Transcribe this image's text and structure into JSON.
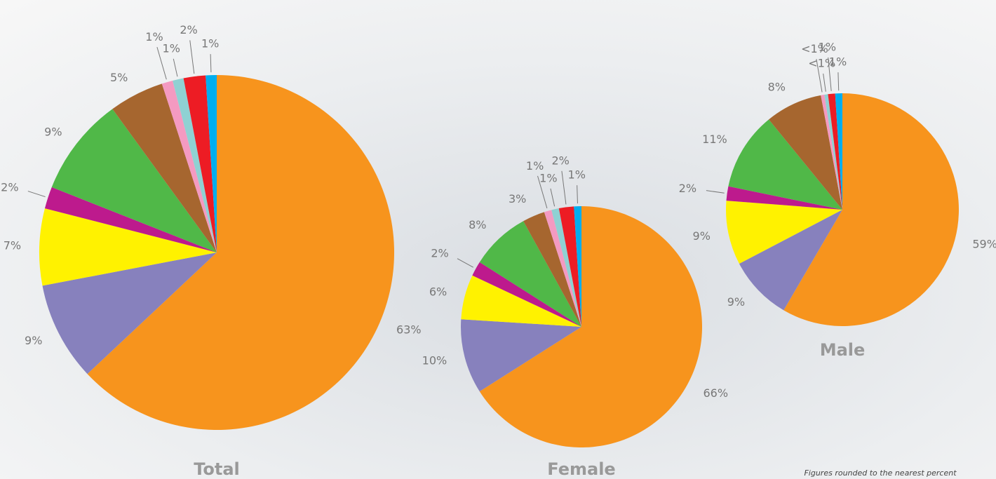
{
  "chart_data": [
    {
      "type": "pie",
      "title": "Total",
      "values": [
        63,
        9,
        7,
        2,
        9,
        5,
        1,
        1,
        2,
        1
      ],
      "value_labels": [
        "63%",
        "9%",
        "7%",
        "2%",
        "9%",
        "5%",
        "1%",
        "1%",
        "2%",
        "1%"
      ],
      "colors": [
        "#f7941d",
        "#8781bd",
        "#fff200",
        "#bd1a8d",
        "#50b848",
        "#a6662f",
        "#f49ac1",
        "#8fd1d3",
        "#ed1c24",
        "#00aeef"
      ]
    },
    {
      "type": "pie",
      "title": "Female",
      "values": [
        66,
        10,
        6,
        2,
        8,
        3,
        1,
        1,
        2,
        1
      ],
      "value_labels": [
        "66%",
        "10%",
        "6%",
        "2%",
        "8%",
        "3%",
        "1%",
        "1%",
        "2%",
        "1%"
      ],
      "colors": [
        "#f7941d",
        "#8781bd",
        "#fff200",
        "#bd1a8d",
        "#50b848",
        "#a6662f",
        "#f49ac1",
        "#8fd1d3",
        "#ed1c24",
        "#00aeef"
      ]
    },
    {
      "type": "pie",
      "title": "Male",
      "values": [
        59,
        9,
        9,
        2,
        11,
        8,
        0.5,
        0.5,
        1,
        1
      ],
      "value_labels": [
        "59%",
        "9%",
        "9%",
        "2%",
        "11%",
        "8%",
        "<1%",
        "<1%",
        "1%",
        "1%"
      ],
      "colors": [
        "#f7941d",
        "#8781bd",
        "#fff200",
        "#bd1a8d",
        "#50b848",
        "#a6662f",
        "#f49ac1",
        "#8fd1d3",
        "#ed1c24",
        "#00aeef"
      ]
    }
  ],
  "footnote": "Figures rounded to the nearest percent"
}
